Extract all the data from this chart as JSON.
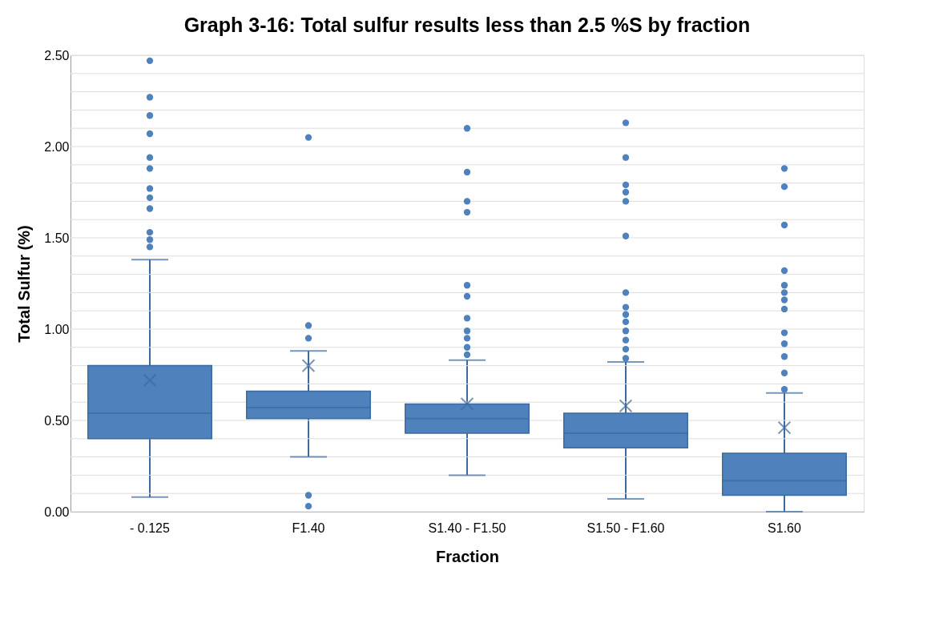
{
  "chart_data": {
    "type": "box",
    "title": "Graph 3-16: Total sulfur results less than 2.5 %S by fraction",
    "xlabel": "Fraction",
    "ylabel": "Total Sulfur (%)",
    "categories": [
      "-  0.125",
      "F1.40",
      "S1.40 - F1.50",
      "S1.50 - F1.60",
      "S1.60"
    ],
    "color": "#4f81bd",
    "boxes": [
      {
        "low": 0.08,
        "q1": 0.4,
        "median": 0.54,
        "q3": 0.8,
        "high": 1.38,
        "mean": 0.72,
        "outliers": [
          2.47,
          2.27,
          2.17,
          2.07,
          1.94,
          1.88,
          1.77,
          1.72,
          1.66,
          1.53,
          1.49,
          1.45
        ]
      },
      {
        "low": 0.3,
        "q1": 0.51,
        "median": 0.57,
        "q3": 0.66,
        "high": 0.88,
        "mean": 0.8,
        "outliers": [
          2.05,
          1.02,
          0.95,
          0.09,
          0.03
        ]
      },
      {
        "low": 0.2,
        "q1": 0.43,
        "median": 0.51,
        "q3": 0.59,
        "high": 0.83,
        "mean": 0.59,
        "outliers": [
          2.1,
          1.86,
          1.7,
          1.64,
          1.24,
          1.18,
          1.06,
          0.99,
          0.95,
          0.9,
          0.86
        ]
      },
      {
        "low": 0.07,
        "q1": 0.35,
        "median": 0.43,
        "q3": 0.54,
        "high": 0.82,
        "mean": 0.58,
        "outliers": [
          2.13,
          1.94,
          1.79,
          1.75,
          1.7,
          1.51,
          1.2,
          1.12,
          1.08,
          1.04,
          0.99,
          0.94,
          0.89,
          0.84
        ]
      },
      {
        "low": 0.0,
        "q1": 0.09,
        "median": 0.17,
        "q3": 0.32,
        "high": 0.65,
        "mean": 0.46,
        "outliers": [
          1.88,
          1.78,
          1.57,
          1.32,
          1.24,
          1.2,
          1.16,
          1.11,
          0.98,
          0.92,
          0.85,
          0.76,
          0.67
        ]
      }
    ],
    "ylim": [
      0,
      2.5
    ],
    "yticks": [
      {
        "value": 0,
        "label": "0.00"
      },
      {
        "value": 0.1,
        "label": null
      },
      {
        "value": 0.2,
        "label": null
      },
      {
        "value": 0.3,
        "label": null
      },
      {
        "value": 0.4,
        "label": null
      },
      {
        "value": 0.5,
        "label": "0.50"
      },
      {
        "value": 0.6,
        "label": null
      },
      {
        "value": 0.7,
        "label": null
      },
      {
        "value": 0.8,
        "label": null
      },
      {
        "value": 0.9,
        "label": null
      },
      {
        "value": 1.0,
        "label": "1.00"
      },
      {
        "value": 1.1,
        "label": null
      },
      {
        "value": 1.2,
        "label": null
      },
      {
        "value": 1.3,
        "label": null
      },
      {
        "value": 1.4,
        "label": null
      },
      {
        "value": 1.5,
        "label": "1.50"
      },
      {
        "value": 1.6,
        "label": null
      },
      {
        "value": 1.7,
        "label": null
      },
      {
        "value": 1.8,
        "label": null
      },
      {
        "value": 1.9,
        "label": null
      },
      {
        "value": 2.0,
        "label": "2.00"
      },
      {
        "value": 2.1,
        "label": null
      },
      {
        "value": 2.2,
        "label": null
      },
      {
        "value": 2.3,
        "label": null
      },
      {
        "value": 2.4,
        "label": null
      },
      {
        "value": 2.5,
        "label": "2.50"
      }
    ],
    "grid": "y"
  }
}
